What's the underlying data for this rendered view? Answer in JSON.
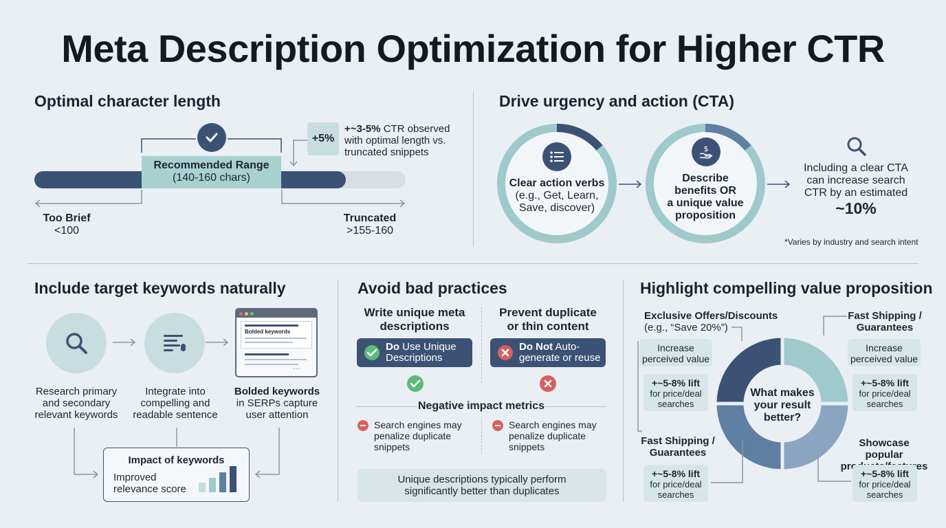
{
  "title": "Meta Description Optimization for Higher CTR",
  "length": {
    "heading": "Optimal character length",
    "range_title": "Recommended Range",
    "range_sub": "(140-160 chars)",
    "badge": "+5%",
    "note_bold": "+~3-5%",
    "note_line1_rest": " CTR observed",
    "note_line2": "with optimal length vs.",
    "note_line3": "truncated snippets",
    "left_title": "Too Brief",
    "left_value": "<100",
    "right_title": "Truncated",
    "right_value": ">155-160"
  },
  "cta": {
    "heading": "Drive urgency and action (CTA)",
    "circle1": [
      "Clear action verbs",
      "(e.g., Get, Learn,",
      "Save, discover)"
    ],
    "circle2": [
      "Describe",
      "benefits OR",
      "a unique value",
      "proposition"
    ],
    "result": [
      "Including a clear CTA",
      "can increase search",
      "CTR by an estimated"
    ],
    "result_value": "~10%",
    "footnote": "*Varies by industry and search intent"
  },
  "keywords": {
    "heading": "Include target keywords naturally",
    "step1": [
      "Research primary",
      "and secondary",
      "relevant keywords"
    ],
    "step2": [
      "Integrate into",
      "compelling and",
      "readable sentence"
    ],
    "step3_bold": "Bolded keywords",
    "step3": [
      "in SERPs capture",
      "user attention"
    ],
    "serp_label": "Bolded keywords",
    "impact_title": "Impact of keywords",
    "impact_text": [
      "Improved",
      "relevance score"
    ]
  },
  "avoid": {
    "heading": "Avoid bad practices",
    "col1_title": [
      "Write unique meta",
      "descriptions"
    ],
    "col2_title": [
      "Prevent duplicate",
      "or thin content"
    ],
    "do_bold": "Do",
    "do_rest1": " Use Unique",
    "do_rest2": "Descriptions",
    "dont_bold": "Do Not",
    "dont_rest1": " Auto-",
    "dont_rest2": "generate or reuse",
    "metrics_title": "Negative impact metrics",
    "metric1": [
      "Search engines may",
      "penalize duplicate",
      "snippets"
    ],
    "metric2": [
      "Search engines may",
      "penalize duplicate",
      "snippets"
    ],
    "summary": [
      "Unique descriptions typically perform",
      "significantly better than duplicates"
    ]
  },
  "value": {
    "heading": "Highlight compelling value proposition",
    "center": [
      "What makes",
      "your result",
      "better?"
    ],
    "tl_title": [
      "Exclusive Offers/Discounts",
      "(e.g., “Save 20%”)"
    ],
    "tl_pill": [
      "Increase",
      "perceived value"
    ],
    "tl_lift": [
      "+~5-8% lift",
      "for price/deal",
      "searches"
    ],
    "tr_title": [
      "Fast Shipping /",
      "Guarantees"
    ],
    "tr_pill": [
      "Increase",
      "perceived value"
    ],
    "tr_lift": [
      "+~5-8% lift",
      "for price/deal",
      "searches"
    ],
    "bl_title": [
      "Fast Shipping /",
      "Guarantees"
    ],
    "bl_lift": [
      "+~5-8% lift",
      "for price/deal",
      "searches"
    ],
    "br_title": [
      "Showcase popular",
      "products/features"
    ],
    "br_lift": [
      "+~5-8% lift",
      "for price/deal",
      "searches"
    ]
  },
  "colors": {
    "navy": "#3b5275",
    "teal": "#9fcacb",
    "light_teal": "#d6e6e8",
    "slate": "#5f7fa3",
    "red": "#d9605e",
    "green": "#5dbb79",
    "background": "#eaeff4"
  }
}
